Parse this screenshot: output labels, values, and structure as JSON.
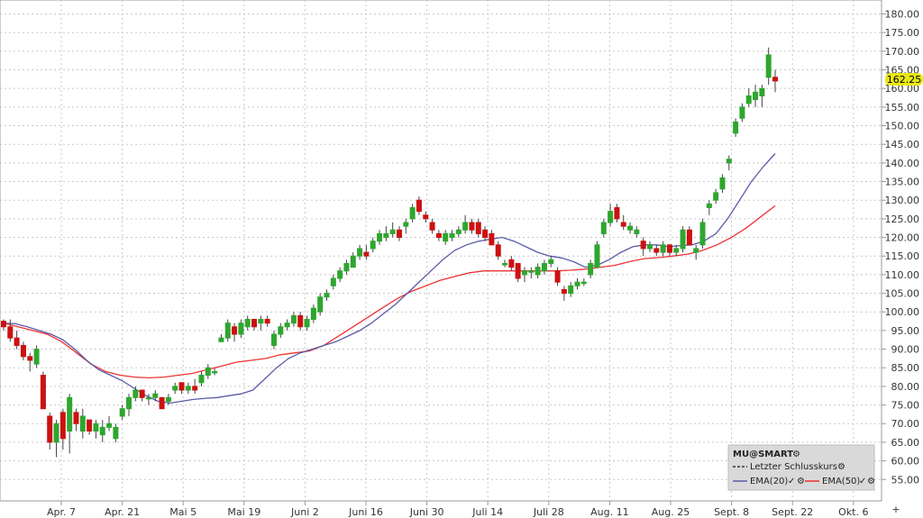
{
  "chart_data": {
    "type": "candlestick",
    "symbol": "MU@SMART",
    "last_price_label": "162.25",
    "y_ticks": [
      "180.00",
      "175.00",
      "170.00",
      "165.00",
      "160.00",
      "155.00",
      "150.00",
      "145.00",
      "140.00",
      "135.00",
      "130.00",
      "125.00",
      "120.00",
      "115.00",
      "110.00",
      "105.00",
      "100.00",
      "95.00",
      "90.00",
      "85.00",
      "80.00",
      "75.00",
      "70.00",
      "65.00",
      "60.00",
      "55.00"
    ],
    "ylim": [
      52,
      182
    ],
    "x_labels": [
      "Apr. 7",
      "Apr. 21",
      "Mai 5",
      "Mai 19",
      "Juni 2",
      "Juni 16",
      "Juni 30",
      "Juli 14",
      "Juli 28",
      "Aug. 11",
      "Aug. 25",
      "Sept. 8",
      "Sept. 22",
      "Okt. 6"
    ],
    "legend": {
      "title": "MU@SMART",
      "items": [
        {
          "label": "Letzter Schlusskurs",
          "style": "dash",
          "color": "#333333"
        },
        {
          "label": "EMA(20)",
          "style": "line",
          "color": "#5a5aa8"
        },
        {
          "label": "EMA(50)",
          "style": "line",
          "color": "#ee3333"
        }
      ]
    },
    "colors": {
      "up": "#2ea62e",
      "down": "#cc1111",
      "ema20": "#5a5aa8",
      "ema50": "#ee3333",
      "grid": "#c8c8c8",
      "price_tag": "#e8e814"
    },
    "candles": [
      [
        97.5,
        98,
        95,
        96
      ],
      [
        96,
        98,
        92,
        93
      ],
      [
        93,
        95,
        90,
        91
      ],
      [
        91,
        92,
        87,
        88
      ],
      [
        88,
        89,
        84,
        87
      ],
      [
        86,
        91,
        85,
        90
      ],
      [
        83,
        84,
        74,
        74
      ],
      [
        72,
        73,
        63,
        65
      ],
      [
        65,
        71,
        61,
        70
      ],
      [
        73,
        74,
        63,
        66
      ],
      [
        68,
        78,
        62,
        77
      ],
      [
        73,
        74,
        68,
        70
      ],
      [
        68,
        74,
        66,
        72
      ],
      [
        71,
        71,
        67,
        68
      ],
      [
        68,
        71,
        66,
        70
      ],
      [
        67,
        71,
        65,
        69
      ],
      [
        69,
        72,
        68,
        70
      ],
      [
        66,
        70,
        65,
        69
      ],
      [
        72,
        75,
        71,
        74
      ],
      [
        74,
        78,
        72,
        77
      ],
      [
        77,
        80,
        76,
        79
      ],
      [
        79,
        79,
        76,
        77
      ],
      [
        77,
        78,
        75,
        77
      ],
      [
        77,
        79,
        76,
        78
      ],
      [
        77,
        77,
        74,
        74
      ],
      [
        76,
        78,
        75,
        77
      ],
      [
        79,
        81,
        78,
        80
      ],
      [
        81,
        81,
        78,
        79
      ],
      [
        79,
        81,
        78,
        80
      ],
      [
        80,
        82,
        78,
        79
      ],
      [
        81,
        84,
        80,
        83
      ],
      [
        83,
        86,
        82,
        85
      ],
      [
        84,
        85,
        83,
        84
      ],
      [
        92,
        94,
        92,
        93
      ],
      [
        93,
        98,
        92,
        97
      ],
      [
        96,
        97,
        92,
        94
      ],
      [
        94,
        98,
        93,
        97
      ],
      [
        96,
        99,
        95,
        98
      ],
      [
        98,
        98,
        95,
        96
      ],
      [
        97,
        99,
        95,
        98
      ],
      [
        98,
        99,
        96,
        97
      ],
      [
        91,
        95,
        90,
        94
      ],
      [
        94,
        97,
        93,
        96
      ],
      [
        96,
        98,
        95,
        97
      ],
      [
        97,
        100,
        96,
        99
      ],
      [
        99,
        100,
        95,
        96
      ],
      [
        96,
        99,
        95,
        98
      ],
      [
        98,
        102,
        97,
        101
      ],
      [
        100,
        105,
        99,
        104
      ],
      [
        104,
        106,
        103,
        105
      ],
      [
        107,
        110,
        106,
        109
      ],
      [
        109,
        112,
        108,
        111
      ],
      [
        111,
        114,
        110,
        113
      ],
      [
        112,
        116,
        112,
        115
      ],
      [
        115,
        118,
        114,
        117
      ],
      [
        116,
        118,
        114,
        115
      ],
      [
        117,
        120,
        116,
        119
      ],
      [
        119,
        122,
        118,
        121
      ],
      [
        120,
        123,
        119,
        121
      ],
      [
        121,
        124,
        120,
        122
      ],
      [
        122,
        123,
        119,
        120
      ],
      [
        123,
        125,
        121,
        124
      ],
      [
        125,
        129,
        124,
        128
      ],
      [
        130,
        131,
        126,
        127
      ],
      [
        126,
        127,
        124,
        125
      ],
      [
        124,
        125,
        121,
        122
      ],
      [
        121,
        122,
        119,
        120
      ],
      [
        119,
        122,
        118,
        121
      ],
      [
        120,
        122,
        119,
        121
      ],
      [
        121,
        123,
        120,
        122
      ],
      [
        122,
        126,
        121,
        124
      ],
      [
        124,
        125,
        121,
        122
      ],
      [
        124,
        125,
        120,
        121
      ],
      [
        122,
        123,
        119,
        120
      ],
      [
        121,
        122,
        118,
        118
      ],
      [
        118,
        119,
        114,
        115
      ],
      [
        113,
        114,
        112,
        113
      ],
      [
        114,
        115,
        111,
        112
      ],
      [
        113,
        113,
        108,
        109
      ],
      [
        110,
        112,
        108,
        111
      ],
      [
        111,
        112,
        109,
        111
      ],
      [
        110,
        113,
        109,
        112
      ],
      [
        111,
        114,
        110,
        113
      ],
      [
        113,
        115,
        112,
        114
      ],
      [
        111,
        112,
        107,
        108
      ],
      [
        106,
        107,
        103,
        105
      ],
      [
        105,
        108,
        104,
        107
      ],
      [
        107,
        109,
        106,
        108
      ],
      [
        108,
        109,
        107,
        108
      ],
      [
        110,
        114,
        109,
        113
      ],
      [
        112,
        119,
        112,
        118
      ],
      [
        121,
        125,
        120,
        124
      ],
      [
        124,
        129,
        123,
        127
      ],
      [
        128,
        129,
        124,
        125
      ],
      [
        124,
        126,
        122,
        123
      ],
      [
        122,
        124,
        121,
        123
      ],
      [
        121,
        123,
        120,
        122
      ],
      [
        119,
        120,
        115,
        117
      ],
      [
        117,
        119,
        116,
        118
      ],
      [
        117,
        118,
        115,
        116
      ],
      [
        116,
        119,
        115,
        118
      ],
      [
        118,
        118,
        115,
        116
      ],
      [
        116,
        118,
        115,
        117
      ],
      [
        117,
        123,
        116,
        122
      ],
      [
        122,
        123,
        118,
        118
      ],
      [
        116,
        118,
        114,
        117
      ],
      [
        118,
        125,
        117,
        124
      ],
      [
        128,
        130,
        126,
        129
      ],
      [
        130,
        133,
        129,
        132
      ],
      [
        133,
        137,
        132,
        136
      ],
      [
        140,
        142,
        138,
        141
      ],
      [
        148,
        152,
        147,
        151
      ],
      [
        152,
        156,
        151,
        155
      ],
      [
        156,
        160,
        155,
        158
      ],
      [
        157,
        161,
        155,
        159
      ],
      [
        158,
        161,
        155,
        160
      ],
      [
        163,
        171,
        161,
        169
      ],
      [
        163,
        165,
        159,
        162
      ]
    ],
    "ema20": [
      97.0,
      96.8,
      96.0,
      95.0,
      94.0,
      92.5,
      90.0,
      87.0,
      84.5,
      83.0,
      81.5,
      79.5,
      77.5,
      76.0,
      75.5,
      76.0,
      76.5,
      76.8,
      77.0,
      77.5,
      78.0,
      79.0,
      82.0,
      85.0,
      87.5,
      89.0,
      90.0,
      91.0,
      92.0,
      93.5,
      95.0,
      97.0,
      99.5,
      102.0,
      105.0,
      108.0,
      111.0,
      114.0,
      116.5,
      118.0,
      119.0,
      119.5,
      120.0,
      119.0,
      117.5,
      116.0,
      115.0,
      114.5,
      113.5,
      112.0,
      112.5,
      114.0,
      116.0,
      117.5,
      118.0,
      118.0,
      117.5,
      117.8,
      118.0,
      119.0,
      121.0,
      125.0,
      130.0,
      135.0,
      139.0,
      142.5
    ],
    "ema50": [
      97.0,
      96.0,
      95.0,
      94.0,
      92.0,
      89.0,
      86.0,
      84.0,
      83.0,
      82.5,
      82.3,
      82.5,
      83.0,
      83.5,
      84.5,
      85.5,
      86.5,
      87.0,
      87.5,
      88.5,
      89.0,
      89.5,
      91.0,
      93.5,
      96.0,
      98.5,
      101.0,
      103.5,
      105.5,
      107.0,
      108.5,
      109.5,
      110.5,
      111.0,
      111.0,
      111.0,
      111.0,
      111.0,
      111.0,
      111.2,
      111.5,
      112.0,
      112.5,
      113.5,
      114.3,
      114.6,
      115.0,
      115.5,
      116.5,
      118.0,
      120.0,
      122.5,
      125.5,
      128.5
    ]
  }
}
